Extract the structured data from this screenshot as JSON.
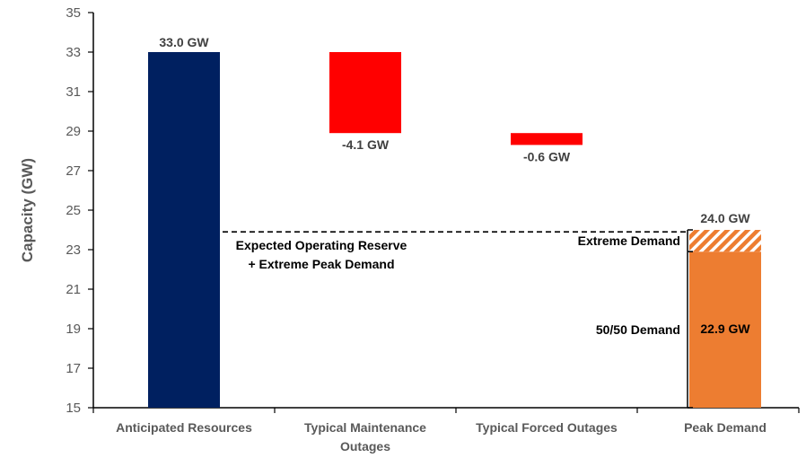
{
  "chart_data": {
    "type": "bar",
    "subtype": "waterfall",
    "title": "",
    "xlabel": "",
    "ylabel": "Capacity (GW)",
    "ylim": [
      15,
      35
    ],
    "yticks": [
      15,
      17,
      19,
      21,
      23,
      25,
      27,
      29,
      31,
      33,
      35
    ],
    "grid": false,
    "legend": "none",
    "categories": [
      [
        "Anticipated Resources"
      ],
      [
        "Typical Maintenance",
        "Outages"
      ],
      [
        "Typical Forced Outages"
      ],
      [
        "Peak Demand"
      ]
    ],
    "bars": [
      {
        "category": "Anticipated Resources",
        "start": 15,
        "end": 33.0,
        "label": "33.0 GW",
        "color": "#002060",
        "label_pos": "top"
      },
      {
        "category": "Typical Maintenance Outages",
        "start": 33.0,
        "end": 28.9,
        "label": "-4.1 GW",
        "color": "#ff0000",
        "label_pos": "bottom"
      },
      {
        "category": "Typical Forced Outages",
        "start": 28.9,
        "end": 28.3,
        "label": "-0.6 GW",
        "color": "#ff0000",
        "label_pos": "bottom"
      }
    ],
    "peak_demand": {
      "base": {
        "start": 15,
        "end": 22.9,
        "label": "22.9 GW",
        "color": "#ed7d31"
      },
      "extreme": {
        "start": 22.9,
        "end": 24.0,
        "label": "24.0 GW",
        "color": "#ed7d31",
        "pattern": "hatched"
      }
    },
    "reference_line": {
      "value": 23.9,
      "style": "dashed",
      "label_lines": [
        "Expected Operating Reserve",
        "+ Extreme Peak Demand"
      ]
    },
    "brackets": [
      {
        "from": 22.9,
        "to": 24.0,
        "label": "Extreme Demand"
      },
      {
        "from": 15,
        "to": 22.9,
        "label": "50/50 Demand"
      }
    ]
  }
}
